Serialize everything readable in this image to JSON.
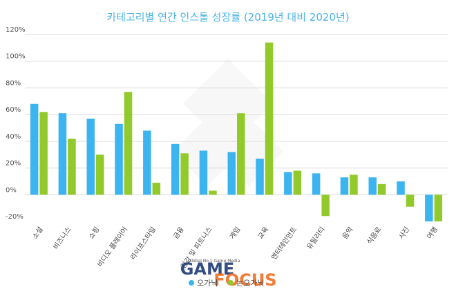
{
  "chart_data": {
    "type": "bar",
    "title": "카테고리별 연간 인스톨 성장률 (2019년 대비 2020년)",
    "categories": [
      "소셜",
      "비즈니스",
      "쇼핑",
      "비디오 플레이어",
      "라이프스타일",
      "금융",
      "건강 및 피트니스",
      "게임",
      "교육",
      "엔터테인먼트",
      "유틸리티",
      "음악",
      "식음료",
      "사진",
      "여행"
    ],
    "series": [
      {
        "name": "오가닉",
        "color": "#3cb4ef",
        "values": [
          68,
          61,
          57,
          53,
          48,
          38,
          33,
          32,
          27,
          17,
          16,
          13,
          13,
          10,
          -20
        ]
      },
      {
        "name": "논오가닉",
        "color": "#92ca2c",
        "values": [
          62,
          42,
          30,
          77,
          9,
          31,
          3,
          61,
          114,
          18,
          -16,
          15,
          8,
          -9,
          -20
        ]
      }
    ],
    "yticks": [
      -20,
      0,
      20,
      40,
      60,
      80,
      100,
      120
    ],
    "ytick_labels": [
      "-20%",
      "0%",
      "20%",
      "40%",
      "60%",
      "80%",
      "100%",
      "120%"
    ],
    "ylim": [
      -20,
      120
    ],
    "grid": true,
    "legend_position": "bottom"
  },
  "watermark": {
    "tagline": "Global No.1 Game Media",
    "brand_part1": "GAME",
    "brand_part2": "FOCUS"
  }
}
